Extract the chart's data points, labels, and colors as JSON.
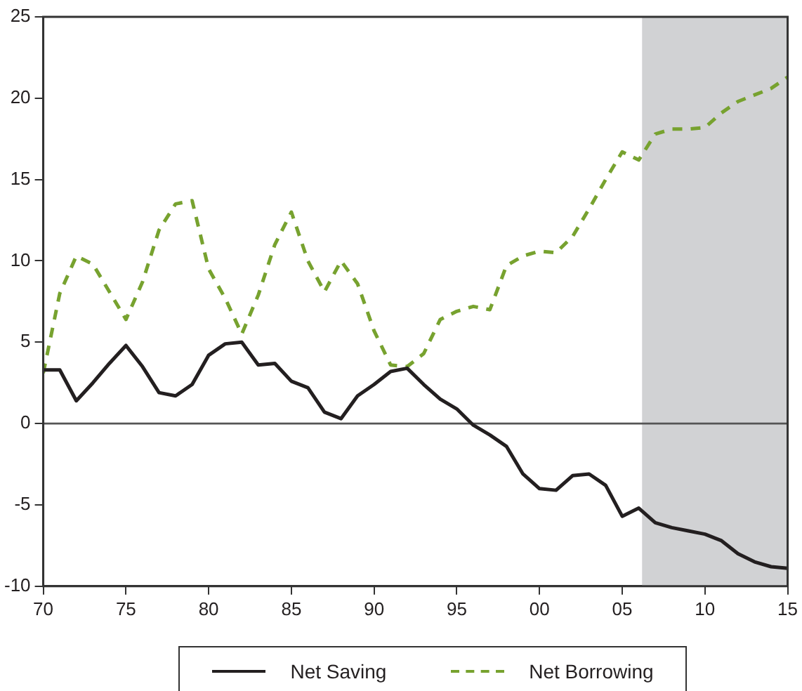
{
  "chart_data": {
    "type": "line",
    "x": [
      1970,
      1971,
      1972,
      1973,
      1974,
      1975,
      1976,
      1977,
      1978,
      1979,
      1980,
      1981,
      1982,
      1983,
      1984,
      1985,
      1986,
      1987,
      1988,
      1989,
      1990,
      1991,
      1992,
      1993,
      1994,
      1995,
      1996,
      1997,
      1998,
      1999,
      2000,
      2001,
      2002,
      2003,
      2004,
      2005,
      2006,
      2007,
      2008,
      2009,
      2010,
      2011,
      2012,
      2013,
      2014,
      2015
    ],
    "series": [
      {
        "name": "Net Saving",
        "color": "#231f20",
        "line_style": "solid",
        "values": [
          3.3,
          3.3,
          1.4,
          2.5,
          3.7,
          4.8,
          3.5,
          1.9,
          1.7,
          2.4,
          4.2,
          4.9,
          5.0,
          3.6,
          3.7,
          2.6,
          2.2,
          0.7,
          0.3,
          1.7,
          2.4,
          3.2,
          3.4,
          2.4,
          1.5,
          0.9,
          -0.1,
          -0.7,
          -1.4,
          -3.1,
          -4.0,
          -4.1,
          -3.2,
          -3.1,
          -3.8,
          -5.7,
          -5.2,
          -6.1,
          -6.4,
          -6.6,
          -6.8,
          -7.2,
          -8.0,
          -8.5,
          -8.8,
          -8.9
        ]
      },
      {
        "name": "Net Borrowing",
        "color": "#77a22f",
        "line_style": "dashed",
        "values": [
          3.1,
          8.0,
          10.3,
          9.8,
          8.1,
          6.4,
          8.7,
          11.9,
          13.5,
          13.7,
          9.5,
          7.7,
          5.5,
          7.9,
          11.0,
          13.0,
          10.0,
          8.1,
          10.0,
          8.6,
          5.7,
          3.6,
          3.5,
          4.3,
          6.4,
          6.9,
          7.2,
          7.0,
          9.7,
          10.3,
          10.6,
          10.5,
          11.5,
          13.2,
          15.0,
          16.7,
          16.2,
          17.8,
          18.1,
          18.1,
          18.2,
          19.1,
          19.8,
          20.2,
          20.6,
          21.3
        ]
      }
    ],
    "xlim": [
      1970,
      2015
    ],
    "xticks": [
      {
        "value": 1970,
        "label": "70"
      },
      {
        "value": 1975,
        "label": "75"
      },
      {
        "value": 1980,
        "label": "80"
      },
      {
        "value": 1985,
        "label": "85"
      },
      {
        "value": 1990,
        "label": "90"
      },
      {
        "value": 1995,
        "label": "95"
      },
      {
        "value": 2000,
        "label": "00"
      },
      {
        "value": 2005,
        "label": "05"
      },
      {
        "value": 2010,
        "label": "10"
      },
      {
        "value": 2015,
        "label": "15"
      }
    ],
    "ylim": [
      -10,
      25
    ],
    "yticks": [
      -10,
      -5,
      0,
      5,
      10,
      15,
      20,
      25
    ],
    "ref_lines": [
      {
        "axis": "y",
        "value": 0,
        "color": "#555555"
      }
    ],
    "bands": [
      {
        "axis": "x",
        "from": 2006.2,
        "to": 2015,
        "color": "#d1d2d4"
      }
    ],
    "grid": false,
    "legend": "bottom",
    "marker": "none"
  }
}
